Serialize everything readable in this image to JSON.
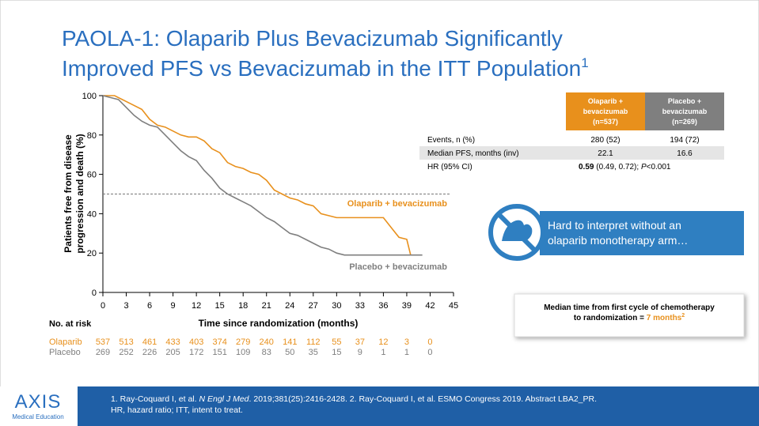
{
  "title": {
    "line1": "PAOLA-1: Olaparib Plus Bevacizumab Significantly",
    "line2": "Improved PFS vs Bevacizumab in the ITT Population",
    "sup": "1"
  },
  "chart_data": {
    "type": "line",
    "step": true,
    "xlabel": "Time since randomization (months)",
    "ylabel": [
      "Patients free from disease",
      "progression and death (%)"
    ],
    "xlim": [
      0,
      45
    ],
    "xticks": [
      0,
      3,
      6,
      9,
      12,
      15,
      18,
      21,
      24,
      27,
      30,
      33,
      36,
      39,
      42,
      45
    ],
    "ylim": [
      0,
      100
    ],
    "yticks": [
      0,
      20,
      40,
      60,
      80,
      100
    ],
    "hline": 50,
    "series": [
      {
        "name": "Olaparib + bevacizumab",
        "color": "#e8901c",
        "x": [
          0,
          1.5,
          2.5,
          3.5,
          5,
          6,
          7,
          8,
          9,
          10,
          11,
          12,
          13,
          14,
          15,
          16,
          17,
          18,
          19,
          20,
          21,
          22,
          23,
          24,
          25,
          26,
          27,
          28,
          29,
          30,
          33,
          36,
          37,
          38,
          39,
          39.5
        ],
        "values": [
          100,
          100,
          98,
          96,
          93,
          88,
          85,
          84,
          82,
          80,
          79,
          79,
          77,
          73,
          71,
          66,
          64,
          63,
          61,
          60,
          57,
          52,
          50,
          48,
          47,
          45,
          44,
          40,
          39,
          38,
          38,
          38,
          33,
          28,
          27,
          19
        ]
      },
      {
        "name": "Placebo + bevacizumab",
        "color": "#7f7f7f",
        "x": [
          0,
          2,
          3,
          4,
          5,
          6,
          7,
          8,
          9,
          10,
          11,
          12,
          13,
          14,
          15,
          16,
          17,
          18,
          19,
          20,
          21,
          22,
          23,
          24,
          25,
          26,
          27,
          28,
          29,
          30,
          31,
          33,
          36,
          39,
          41
        ],
        "values": [
          100,
          98,
          94,
          90,
          87,
          85,
          84,
          80,
          76,
          72,
          69,
          67,
          62,
          58,
          53,
          50,
          48,
          46,
          44,
          41,
          38,
          36,
          33,
          30,
          29,
          27,
          25,
          23,
          22,
          20,
          19,
          19,
          19,
          19,
          19
        ]
      }
    ]
  },
  "risk_table": {
    "title": "No. at risk",
    "rows": [
      {
        "name": "Olaparib",
        "values": [
          537,
          513,
          461,
          433,
          403,
          374,
          279,
          240,
          141,
          112,
          55,
          37,
          12,
          3,
          0
        ]
      },
      {
        "name": "Placebo",
        "values": [
          269,
          252,
          226,
          205,
          172,
          151,
          109,
          83,
          50,
          35,
          15,
          9,
          1,
          1,
          0
        ]
      }
    ]
  },
  "table": {
    "headers": [
      [
        "Olaparib +",
        "bevacizumab",
        "(n=537)"
      ],
      [
        "Placebo +",
        "bevacizumab",
        "(n=269)"
      ]
    ],
    "rows": [
      [
        "Events, n (%)",
        "280 (52)",
        "194 (72)"
      ],
      [
        "Median PFS, months (inv)",
        "22.1",
        "16.6"
      ]
    ],
    "hr": {
      "label": "HR (95% CI)",
      "value": "0.59",
      "ci": " (0.49, 0.72); ",
      "p_label": "P",
      "p": "<0.001"
    }
  },
  "callout": [
    "Hard to interpret without an",
    "olaparib monotherapy arm…"
  ],
  "note": {
    "line1": "Median time from first cycle of chemotherapy",
    "line2": "to randomization = ",
    "value": "7 months",
    "sup": "2"
  },
  "footnote": {
    "line1": [
      "1. Ray-Coquard I, et al. ",
      "N Engl J Med",
      ". 2019;381(25):2416-2428. 2. Ray-Coquard I, et al. ESMO Congress 2019. Abstract LBA2_PR."
    ],
    "line2": "HR, hazard ratio; ITT, intent to treat."
  },
  "logo": {
    "name": "AXIS",
    "subtitle": "Medical Education"
  }
}
